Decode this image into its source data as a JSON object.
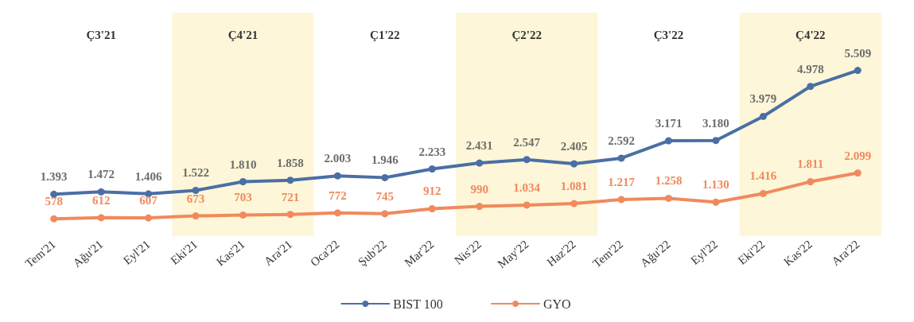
{
  "chart_data": {
    "type": "line",
    "categories": [
      "Tem'21",
      "Ağu'21",
      "Eyl'21",
      "Eki'21",
      "Kas'21",
      "Ara'21",
      "Oca'22",
      "Şub'22",
      "Mar'22",
      "Nis'22",
      "May'22",
      "Haz'22",
      "Tem'22",
      "Ağu'22",
      "Eyl'22",
      "Eki'22",
      "Kas'22",
      "Ara'22"
    ],
    "series": [
      {
        "name": "BIST 100",
        "color": "#4a6fa5",
        "values": [
          1393,
          1472,
          1406,
          1522,
          1810,
          1858,
          2003,
          1946,
          2233,
          2431,
          2547,
          2405,
          2592,
          3171,
          3180,
          3979,
          4978,
          5509
        ],
        "value_labels": [
          "1.393",
          "1.472",
          "1.406",
          "1.522",
          "1.810",
          "1.858",
          "2.003",
          "1.946",
          "2.233",
          "2.431",
          "2.547",
          "2.405",
          "2.592",
          "3.171",
          "3.180",
          "3.979",
          "4.978",
          "5.509"
        ]
      },
      {
        "name": "GYO",
        "color": "#f08a5d",
        "values": [
          578,
          612,
          607,
          673,
          703,
          721,
          772,
          745,
          912,
          990,
          1034,
          1081,
          1217,
          1258,
          1130,
          1416,
          1811,
          2099
        ],
        "value_labels": [
          "578",
          "612",
          "607",
          "673",
          "703",
          "721",
          "772",
          "745",
          "912",
          "990",
          "1.034",
          "1.081",
          "1.217",
          "1.258",
          "1.130",
          "1.416",
          "1.811",
          "2.099"
        ]
      }
    ],
    "bands": [
      {
        "axis": "x",
        "from": "Eki'21",
        "to": "Ara'21",
        "label": "Ç4'21",
        "color": "#fdf6d8"
      },
      {
        "axis": "x",
        "from": "Nis'22",
        "to": "Haz'22",
        "label": "Ç2'22",
        "color": "#fdf6d8"
      },
      {
        "axis": "x",
        "from": "Eki'22",
        "to": "Ara'22",
        "label": "Ç4'22",
        "color": "#fdf6d8"
      }
    ],
    "annotations": [
      "Ç3'21",
      "Ç1'22",
      "Ç3'22"
    ],
    "legend": "bottom",
    "marker": "circle",
    "line_style": "solid",
    "grid": false
  }
}
